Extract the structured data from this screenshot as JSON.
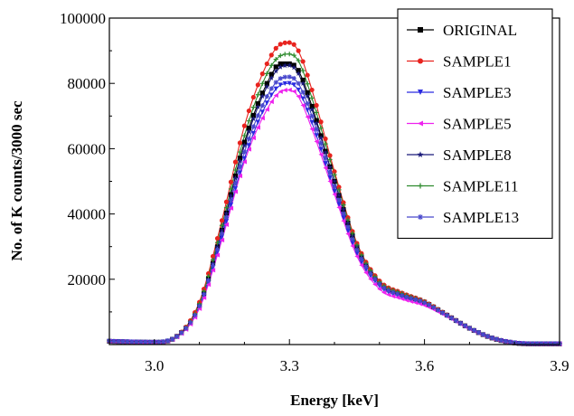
{
  "chart_data": {
    "type": "line",
    "xlabel": "Energy [keV]",
    "ylabel": "No. of K counts/3000 sec",
    "xlim": [
      2.9,
      3.9
    ],
    "ylim": [
      0,
      100000
    ],
    "xticks": [
      "3.0",
      "3.3",
      "3.6",
      "3.9"
    ],
    "yticks": [
      "20000",
      "40000",
      "60000",
      "80000",
      "100000"
    ],
    "x": [
      2.9,
      2.95,
      3.0,
      3.05,
      3.1,
      3.15,
      3.2,
      3.25,
      3.28,
      3.3,
      3.32,
      3.35,
      3.4,
      3.45,
      3.5,
      3.55,
      3.6,
      3.65,
      3.7,
      3.75,
      3.8,
      3.85,
      3.9
    ],
    "legend_position": "top-right",
    "series": [
      {
        "name": "ORIGINAL",
        "color": "#000000",
        "marker": "square",
        "values": [
          1000,
          800,
          700,
          2500,
          12000,
          35000,
          62000,
          80000,
          86000,
          86000,
          84000,
          73000,
          50000,
          30000,
          19000,
          15500,
          13000,
          9000,
          5000,
          2000,
          500,
          200,
          200
        ]
      },
      {
        "name": "SAMPLE1",
        "color": "#e8231e",
        "marker": "circle",
        "values": [
          1000,
          800,
          700,
          2600,
          13000,
          38000,
          67000,
          86000,
          92000,
          92500,
          90000,
          78000,
          53000,
          31000,
          19500,
          15800,
          13200,
          9100,
          5000,
          2000,
          500,
          200,
          200
        ]
      },
      {
        "name": "SAMPLE3",
        "color": "#2a2ae0",
        "marker": "triangle-down",
        "values": [
          1000,
          800,
          700,
          2400,
          11500,
          33000,
          57000,
          74000,
          79500,
          80000,
          78000,
          68000,
          47000,
          28000,
          18000,
          14500,
          12500,
          8800,
          4900,
          1900,
          500,
          200,
          200
        ]
      },
      {
        "name": "SAMPLE5",
        "color": "#ee22ee",
        "marker": "triangle-left",
        "values": [
          1000,
          800,
          700,
          2300,
          11000,
          32000,
          56000,
          72000,
          77500,
          78000,
          76000,
          66000,
          46000,
          27000,
          17000,
          14000,
          12000,
          8600,
          4800,
          1900,
          500,
          200,
          200
        ]
      },
      {
        "name": "SAMPLE8",
        "color": "#1a1a7a",
        "marker": "star",
        "values": [
          1000,
          800,
          700,
          2500,
          12000,
          35000,
          61000,
          79000,
          85000,
          85500,
          83000,
          72000,
          50000,
          30000,
          19000,
          15500,
          13000,
          9000,
          5000,
          2000,
          500,
          200,
          200
        ]
      },
      {
        "name": "SAMPLE11",
        "color": "#2e8b2e",
        "marker": "plus",
        "values": [
          1000,
          800,
          700,
          2550,
          12500,
          36500,
          64000,
          83000,
          88500,
          89000,
          87000,
          75500,
          52000,
          30500,
          19200,
          15600,
          13100,
          9000,
          5000,
          2000,
          500,
          200,
          200
        ]
      },
      {
        "name": "SAMPLE13",
        "color": "#4848cc",
        "marker": "asterisk",
        "values": [
          1000,
          800,
          700,
          2450,
          11800,
          34000,
          59000,
          76000,
          81500,
          82000,
          80000,
          70000,
          48500,
          29000,
          18500,
          15000,
          12800,
          8900,
          4950,
          2000,
          500,
          200,
          200
        ]
      }
    ]
  }
}
